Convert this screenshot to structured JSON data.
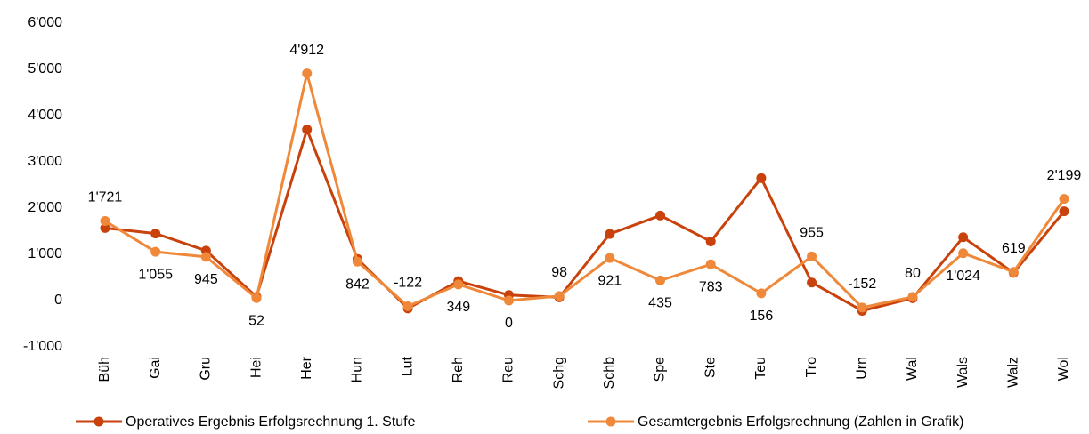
{
  "chart_data": {
    "type": "line",
    "categories": [
      "Büh",
      "Gai",
      "Gru",
      "Hei",
      "Her",
      "Hun",
      "Lut",
      "Reh",
      "Reu",
      "Schg",
      "Schb",
      "Spe",
      "Ste",
      "Teu",
      "Tro",
      "Urn",
      "Wal",
      "Wals",
      "Walz",
      "Wol"
    ],
    "series": [
      {
        "name": "Operatives Ergebnis Erfolgsrechnung 1. Stufe",
        "color": "#c9420c",
        "values": [
          1570,
          1450,
          1080,
          80,
          3700,
          900,
          -170,
          420,
          120,
          70,
          1440,
          1840,
          1280,
          2650,
          390,
          -220,
          50,
          1370,
          600,
          1930
        ]
      },
      {
        "name": "Gesamtergebnis Erfolgsrechnung (Zahlen in Grafik)",
        "color": "#f0883a",
        "values": [
          1721,
          1055,
          945,
          52,
          4912,
          842,
          -122,
          349,
          0,
          98,
          921,
          435,
          783,
          156,
          955,
          -152,
          80,
          1024,
          619,
          2199
        ],
        "value_labels": [
          "1'721",
          "1'055",
          "945",
          "52",
          "4'912",
          "842",
          "-122",
          "349",
          "0",
          "98",
          "921",
          "435",
          "783",
          "156",
          "955",
          "-152",
          "80",
          "1'024",
          "619",
          "2'199"
        ]
      }
    ],
    "ylim": [
      -1000,
      6000
    ],
    "yticks": [
      {
        "value": -1000,
        "label": "-1'000"
      },
      0,
      {
        "value": 1000,
        "label": "1'000"
      },
      {
        "value": 2000,
        "label": "2'000"
      },
      {
        "value": 3000,
        "label": "3'000"
      },
      {
        "value": 4000,
        "label": "4'000"
      },
      {
        "value": 5000,
        "label": "5'000"
      },
      {
        "value": 6000,
        "label": "6'000"
      }
    ],
    "grid": false
  }
}
